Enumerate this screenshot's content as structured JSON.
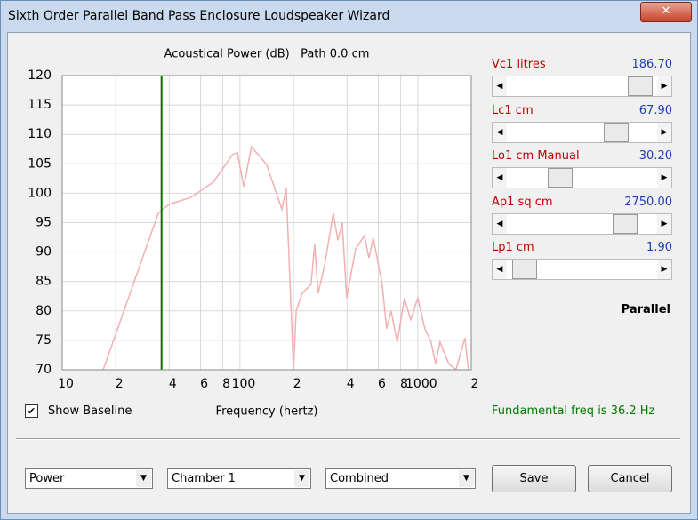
{
  "window": {
    "title": "Sixth Order Parallel Band Pass Enclosure Loudspeaker Wizard"
  },
  "chart_data": {
    "type": "line",
    "title": "Acoustical Power (dB)   Path 0.0 cm",
    "xlabel": "Frequency (hertz)",
    "x": [
      17,
      34.7,
      39.8,
      53,
      70.8,
      91,
      96.6,
      105,
      116,
      141,
      172,
      182,
      200,
      207,
      224,
      251,
      263,
      275,
      298,
      335,
      355,
      376,
      398,
      447,
      501,
      531,
      562,
      631,
      668,
      708,
      767,
      841,
      912,
      1000,
      1096,
      1189,
      1259,
      1334,
      1496,
      1641,
      1841,
      1928
    ],
    "series": [
      {
        "color": "#f2b0b0",
        "values": [
          70,
          96.6,
          98.1,
          99.3,
          101.9,
          106.6,
          106.9,
          101.1,
          107.9,
          104.9,
          97.3,
          100.8,
          70,
          80,
          83,
          84.5,
          91.3,
          83,
          87.5,
          96.6,
          92,
          95,
          82.2,
          90.5,
          92.8,
          89,
          92.4,
          84.5,
          77,
          80,
          74.7,
          82.2,
          78.5,
          82.2,
          77,
          74.7,
          71,
          74.7,
          71,
          70,
          75.4,
          70
        ]
      }
    ],
    "xscale": "log",
    "xlim": [
      10,
      2000
    ],
    "ylim": [
      70,
      120
    ],
    "xticks": [
      10,
      {
        "value": 20,
        "label": "2"
      },
      {
        "value": 40,
        "label": "4"
      },
      {
        "value": 60,
        "label": "6"
      },
      {
        "value": 80,
        "label": "8"
      },
      100,
      {
        "value": 200,
        "label": "2"
      },
      {
        "value": 400,
        "label": "4"
      },
      {
        "value": 600,
        "label": "6"
      },
      {
        "value": 800,
        "label": "8"
      },
      1000,
      {
        "value": 2000,
        "label": "2"
      }
    ],
    "yticks": [
      70,
      75,
      80,
      85,
      90,
      95,
      100,
      105,
      110,
      115,
      120
    ],
    "grid": true,
    "marker_line": {
      "x": 36.2,
      "color": "#007000"
    }
  },
  "checkbox": {
    "label": "Show Baseline",
    "checked": true
  },
  "status": "Fundamental freq is 36.2 Hz",
  "parameters": [
    {
      "label": "Vc1 litres",
      "value": "186.70"
    },
    {
      "label": "Lc1 cm",
      "value": "67.90"
    },
    {
      "label": "Lo1 cm Manual",
      "value": "30.20"
    },
    {
      "label": "Ap1 sq cm",
      "value": "2750.00"
    },
    {
      "label": "Lp1 cm",
      "value": "1.90"
    }
  ],
  "mode": "Parallel",
  "dropdowns": [
    "Power",
    "Chamber 1",
    "Combined"
  ],
  "buttons": [
    "Save",
    "Cancel"
  ]
}
